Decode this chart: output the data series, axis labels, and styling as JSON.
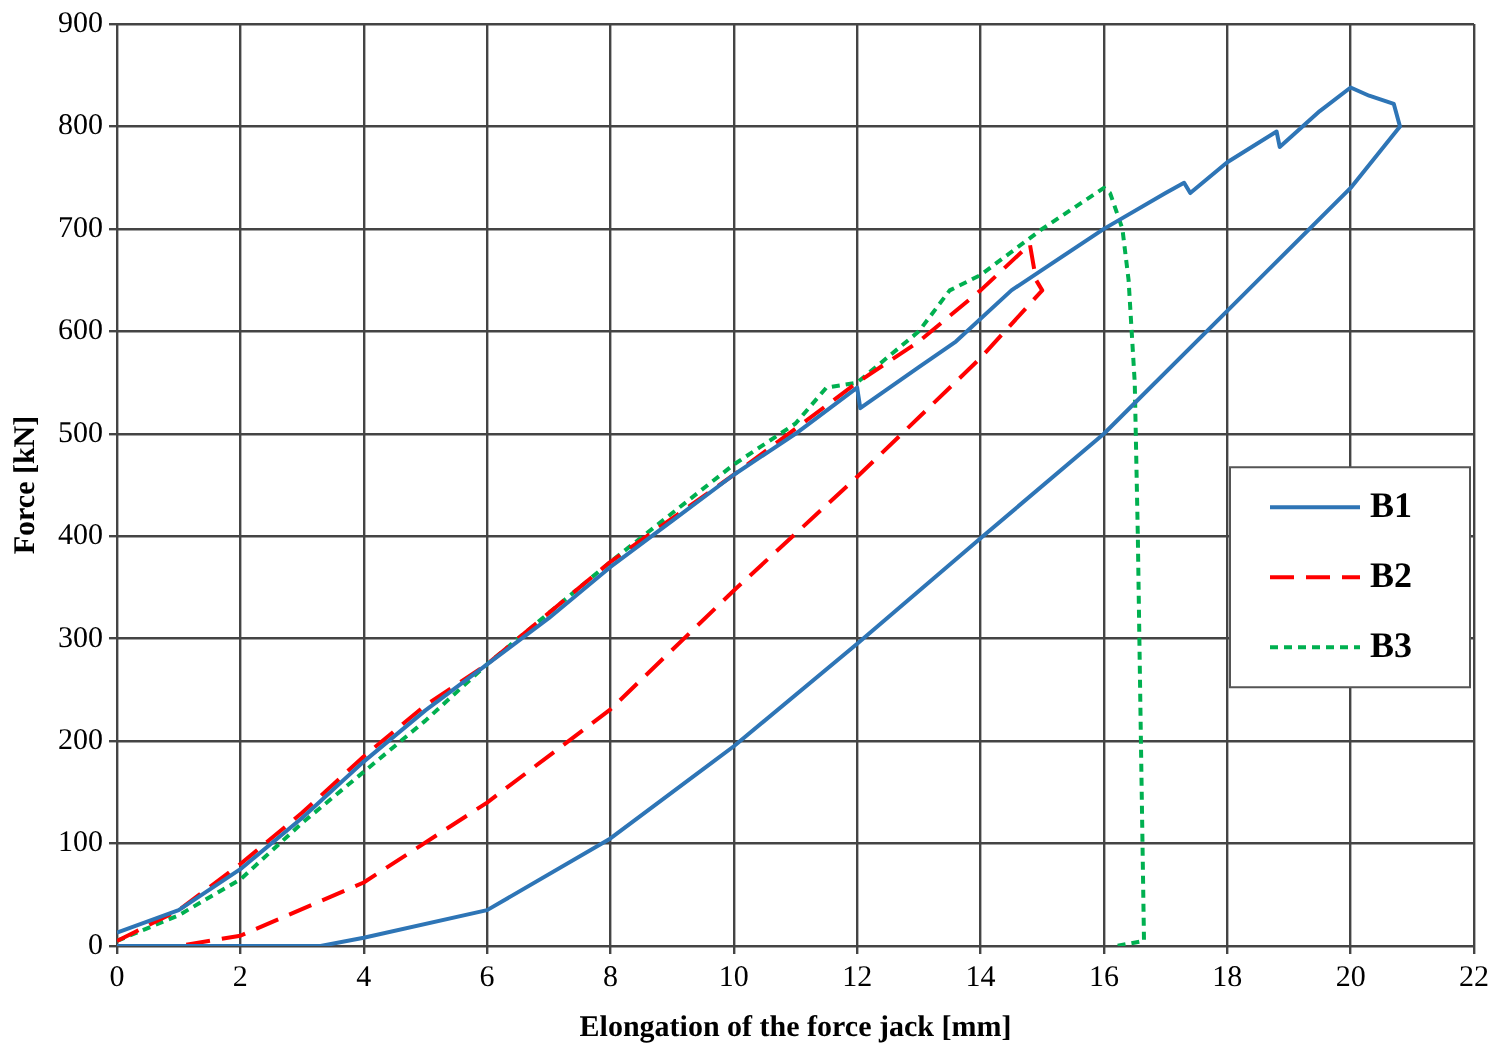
{
  "chart_data": {
    "type": "line",
    "xlabel": "Elongation of the force jack [mm]",
    "ylabel": "Force [kN]",
    "xlim": [
      0,
      22
    ],
    "xticks": [
      0,
      2,
      4,
      6,
      8,
      10,
      12,
      14,
      16,
      18,
      20,
      22
    ],
    "ylim": [
      0,
      900
    ],
    "yticks": [
      0,
      100,
      200,
      300,
      400,
      500,
      600,
      700,
      800,
      900
    ],
    "grid": true,
    "legend": "right",
    "marker": "none",
    "series": [
      {
        "name": "B1",
        "color": "#2e75b6",
        "line_style": "solid",
        "x": [
          0,
          1,
          2,
          3,
          4,
          5,
          6,
          7,
          8,
          9,
          10,
          11,
          12,
          12.05,
          13,
          13.6,
          14.5,
          15,
          16,
          17,
          17.3,
          17.4,
          18,
          18.8,
          18.85,
          19.5,
          20,
          20.3,
          20.7,
          20.8,
          20,
          18,
          16,
          14,
          12,
          10,
          8,
          6,
          4,
          3.3,
          0
        ],
        "values": [
          13,
          35,
          75,
          125,
          180,
          230,
          275,
          320,
          370,
          415,
          460,
          500,
          545,
          525,
          565,
          590,
          640,
          660,
          700,
          735,
          745,
          735,
          765,
          795,
          780,
          815,
          838,
          830,
          822,
          800,
          740,
          620,
          500,
          398,
          295,
          195,
          105,
          35,
          8,
          0,
          0
        ]
      },
      {
        "name": "B2",
        "color": "#ff0000",
        "line_style": "dashed",
        "x": [
          0,
          1,
          2,
          3,
          4,
          5,
          6,
          8,
          10,
          12,
          13,
          14,
          14.8,
          14.9,
          15,
          14,
          12,
          10,
          8,
          6,
          4,
          2,
          1,
          0
        ],
        "values": [
          5,
          35,
          80,
          130,
          185,
          235,
          275,
          375,
          460,
          550,
          590,
          640,
          685,
          650,
          640,
          574,
          458,
          347,
          231,
          140,
          62,
          10,
          0,
          0
        ]
      },
      {
        "name": "B3",
        "color": "#00b050",
        "line_style": "dotted",
        "x": [
          0,
          1,
          2,
          3,
          4,
          5,
          6,
          8,
          10,
          11,
          11.5,
          12,
          13,
          13.5,
          14,
          15,
          16,
          16.1,
          16.3,
          16.4,
          16.5,
          16.55,
          16.6,
          16.65,
          16.2
        ],
        "values": [
          5,
          30,
          65,
          120,
          170,
          220,
          275,
          375,
          470,
          510,
          545,
          550,
          600,
          640,
          655,
          700,
          740,
          735,
          700,
          650,
          550,
          400,
          200,
          5,
          0
        ]
      }
    ]
  }
}
